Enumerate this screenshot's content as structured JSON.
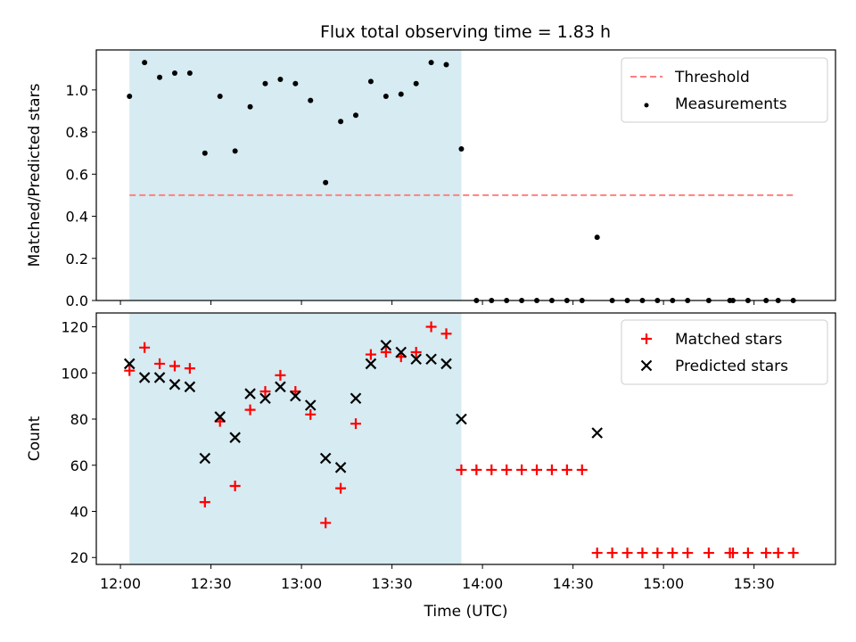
{
  "title": "Flux total observing time = 1.83 h",
  "chart_data": [
    {
      "type": "scatter",
      "ylabel": "Matched/Predicted stars",
      "ylim": [
        0,
        1.19
      ],
      "yticks": [
        0.0,
        0.2,
        0.4,
        0.6,
        0.8,
        1.0
      ],
      "yticklabels": [
        "0.0",
        "0.2",
        "0.4",
        "0.6",
        "0.8",
        "1.0"
      ],
      "legend_position": "upper right",
      "highlight_span": {
        "start": "12:03",
        "end": "13:53",
        "color": "#add8e6"
      },
      "threshold": {
        "name": "Threshold",
        "value": 0.5,
        "x_start": "12:03",
        "x_end": "15:43",
        "color": "#ff7f7f",
        "style": "dashed"
      },
      "series": [
        {
          "name": "Measurements",
          "marker": "dot",
          "color": "#000000",
          "x": [
            "12:03",
            "12:08",
            "12:13",
            "12:18",
            "12:23",
            "12:28",
            "12:33",
            "12:38",
            "12:43",
            "12:48",
            "12:53",
            "12:58",
            "13:03",
            "13:08",
            "13:13",
            "13:18",
            "13:23",
            "13:28",
            "13:33",
            "13:38",
            "13:43",
            "13:48",
            "13:53",
            "13:58",
            "14:03",
            "14:08",
            "14:13",
            "14:18",
            "14:23",
            "14:28",
            "14:33",
            "14:38",
            "14:43",
            "14:48",
            "14:53",
            "14:58",
            "15:03",
            "15:08",
            "15:15",
            "15:22",
            "15:23",
            "15:28",
            "15:34",
            "15:38",
            "15:43"
          ],
          "y": [
            0.97,
            1.13,
            1.06,
            1.08,
            1.08,
            0.7,
            0.97,
            0.71,
            0.92,
            1.03,
            1.05,
            1.03,
            0.95,
            0.56,
            0.85,
            0.88,
            1.04,
            0.97,
            0.98,
            1.03,
            1.13,
            1.12,
            0.72,
            0,
            0,
            0,
            0,
            0,
            0,
            0,
            0,
            0.3,
            0,
            0,
            0,
            0,
            0,
            0,
            0,
            0,
            0,
            0,
            0,
            0,
            0
          ]
        }
      ]
    },
    {
      "type": "scatter",
      "xlabel": "Time (UTC)",
      "ylabel": "Count",
      "ylim": [
        17,
        126
      ],
      "yticks": [
        20,
        40,
        60,
        80,
        100,
        120
      ],
      "yticklabels": [
        "20",
        "40",
        "60",
        "80",
        "100",
        "120"
      ],
      "xlim": [
        "11:52",
        "15:57"
      ],
      "xticks": [
        "12:00",
        "12:30",
        "13:00",
        "13:30",
        "14:00",
        "14:30",
        "15:00",
        "15:30"
      ],
      "xticklabels": [
        "12:00",
        "12:30",
        "13:00",
        "13:30",
        "14:00",
        "14:30",
        "15:00",
        "15:30"
      ],
      "legend_position": "upper right",
      "highlight_span": {
        "start": "12:03",
        "end": "13:53",
        "color": "#add8e6"
      },
      "series": [
        {
          "name": "Matched stars",
          "marker": "plus",
          "color": "#ff0000",
          "x": [
            "12:03",
            "12:08",
            "12:13",
            "12:18",
            "12:23",
            "12:28",
            "12:33",
            "12:38",
            "12:43",
            "12:48",
            "12:53",
            "12:58",
            "13:03",
            "13:08",
            "13:13",
            "13:18",
            "13:23",
            "13:28",
            "13:33",
            "13:38",
            "13:43",
            "13:48",
            "13:53",
            "13:58",
            "14:03",
            "14:08",
            "14:13",
            "14:18",
            "14:23",
            "14:28",
            "14:33",
            "14:38",
            "14:43",
            "14:48",
            "14:53",
            "14:58",
            "15:03",
            "15:08",
            "15:15",
            "15:22",
            "15:23",
            "15:28",
            "15:34",
            "15:38",
            "15:43"
          ],
          "y": [
            101,
            111,
            104,
            103,
            102,
            44,
            79,
            51,
            84,
            92,
            99,
            92,
            82,
            35,
            50,
            78,
            108,
            109,
            107,
            109,
            120,
            117,
            58,
            58,
            58,
            58,
            58,
            58,
            58,
            58,
            58,
            22,
            22,
            22,
            22,
            22,
            22,
            22,
            22,
            22,
            22,
            22,
            22,
            22,
            22
          ]
        },
        {
          "name": "Predicted stars",
          "marker": "x",
          "color": "#000000",
          "x": [
            "12:03",
            "12:08",
            "12:13",
            "12:18",
            "12:23",
            "12:28",
            "12:33",
            "12:38",
            "12:43",
            "12:48",
            "12:53",
            "12:58",
            "13:03",
            "13:08",
            "13:13",
            "13:18",
            "13:23",
            "13:28",
            "13:33",
            "13:38",
            "13:43",
            "13:48",
            "13:53",
            "14:38"
          ],
          "y": [
            104,
            98,
            98,
            95,
            94,
            63,
            81,
            72,
            91,
            89,
            94,
            90,
            86,
            63,
            59,
            89,
            104,
            112,
            109,
            106,
            106,
            104,
            80,
            74
          ]
        }
      ]
    }
  ],
  "legend_label_threshold": "Threshold"
}
